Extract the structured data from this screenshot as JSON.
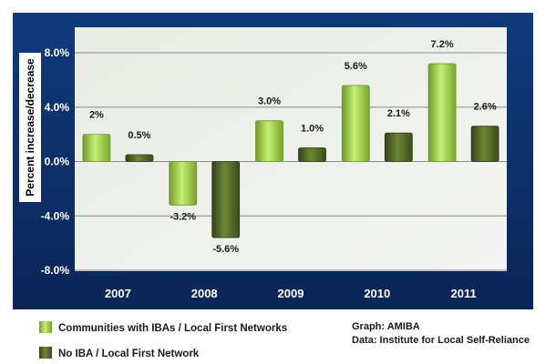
{
  "chart_data": {
    "type": "bar",
    "title": "",
    "ylabel": "Percent increase/decrease",
    "xlabel": "",
    "categories": [
      "2007",
      "2008",
      "2009",
      "2010",
      "2011"
    ],
    "ylim": [
      -8,
      8
    ],
    "yticks": [
      8,
      4,
      0,
      -4,
      -8
    ],
    "ytick_labels": [
      "8.0%",
      "4.0%",
      "0.0%",
      "-4.0%",
      "-8.0%"
    ],
    "grid": true,
    "legend_position": "bottom-left",
    "series": [
      {
        "name": "Communities with IBAs / Local First Networks",
        "values": [
          2.0,
          -3.2,
          3.0,
          5.6,
          7.2
        ],
        "labels": [
          "2%",
          "-3.2%",
          "3.0%",
          "5.6%",
          "7.2%"
        ],
        "color": "#9ACD32"
      },
      {
        "name": "No IBA / Local First Network",
        "values": [
          0.5,
          -5.6,
          1.0,
          2.1,
          2.6
        ],
        "labels": [
          "0.5%",
          "-5.6%",
          "1.0%",
          "2.1%",
          "2.6%"
        ],
        "color": "#5A6E2A"
      }
    ],
    "colors": {
      "background": "#11336E",
      "plot_area": "#E9EDE6"
    }
  },
  "credits": {
    "graph": "Graph: AMIBA",
    "data": "Data:  Institute for Local Self-Reliance"
  }
}
